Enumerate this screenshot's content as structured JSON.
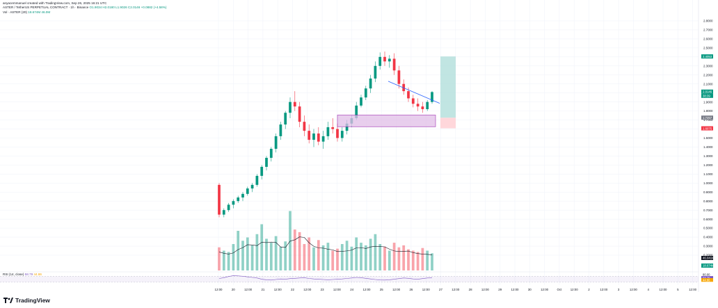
{
  "header": {
    "attribution": "anyacemmanuel created with TradingView.com, Sep 26, 2025 16:21 UTC",
    "symbol_line": "ASTER / TetherUS PERPETUAL CONTRACT · 1h · Binance",
    "ohlc": "O1.9034 H2.0180 L1.9026 C2.0146 +0.0882 (+4.58%)",
    "vol_label": "Vol · ASTER (20)",
    "vol_values": "18.674M  46.0M"
  },
  "rsi": {
    "label": "RSI (14, close)",
    "value": "58.79",
    "extra": "44.86",
    "levels": {
      "upper": 70,
      "lower": 30
    },
    "axis_labels": [
      "80.00",
      "58.79",
      "44.86"
    ]
  },
  "price_axis": {
    "ticks": [
      "2.8000",
      "2.7000",
      "2.6000",
      "2.5000",
      "2.4000",
      "2.3000",
      "2.2000",
      "2.1000",
      "2.0000",
      "1.9000",
      "1.8000",
      "1.7000",
      "1.6000",
      "1.5000",
      "1.4000",
      "1.3000",
      "1.2000",
      "1.1000",
      "1.0000",
      "0.9000",
      "0.8000",
      "0.7000",
      "0.6000",
      "0.5000",
      "0.4000",
      "0.3000",
      "0.2000"
    ],
    "tags": [
      {
        "text": "2.4053",
        "color": "#089981"
      },
      {
        "text": "2.0146",
        "color": "#089981"
      },
      {
        "text": "38:39",
        "color": "#089981"
      },
      {
        "text": "1.7257",
        "color": "#787b86"
      },
      {
        "text": "1.6075",
        "color": "#f23645"
      },
      {
        "text": "46.041M",
        "color": "#131722"
      },
      {
        "text": "18.674M",
        "color": "#089981"
      }
    ]
  },
  "time_axis": {
    "ticks": [
      "12:00",
      "20",
      "12:00",
      "21",
      "12:00",
      "22",
      "12:00",
      "23",
      "12:00",
      "24",
      "12:00",
      "25",
      "12:00",
      "26",
      "12:00",
      "27",
      "12:00",
      "28",
      "12:00",
      "29",
      "12:00",
      "30",
      "12:00",
      "Oct",
      "12:00",
      "2",
      "12:00",
      "3",
      "12:00",
      "4",
      "12:00",
      "5",
      "12:00"
    ]
  },
  "footer": {
    "logo_text": "TradingView"
  },
  "colors": {
    "up": "#089981",
    "down": "#f23645",
    "box": "#e1bee7",
    "box_border": "#9c27b0",
    "trend": "#2962ff",
    "target": "#b2dfdb",
    "stop": "#ffcdd2"
  },
  "chart_data": {
    "type": "candlestick",
    "timeframe": "1h",
    "symbol": "ASTERUSDT.P",
    "y_range": [
      0.2,
      2.8
    ],
    "ohlc_samples": [
      [
        0.98,
        1.0,
        0.62,
        0.65
      ],
      [
        0.65,
        0.72,
        0.62,
        0.7
      ],
      [
        0.7,
        0.78,
        0.68,
        0.76
      ],
      [
        0.76,
        0.82,
        0.72,
        0.8
      ],
      [
        0.8,
        0.86,
        0.78,
        0.84
      ],
      [
        0.84,
        0.9,
        0.8,
        0.88
      ],
      [
        0.88,
        0.96,
        0.86,
        0.94
      ],
      [
        0.94,
        1.0,
        0.9,
        0.98
      ],
      [
        0.98,
        1.1,
        0.96,
        1.08
      ],
      [
        1.08,
        1.2,
        1.04,
        1.18
      ],
      [
        1.18,
        1.3,
        1.14,
        1.28
      ],
      [
        1.28,
        1.4,
        1.24,
        1.38
      ],
      [
        1.38,
        1.55,
        1.34,
        1.52
      ],
      [
        1.52,
        1.68,
        1.48,
        1.65
      ],
      [
        1.65,
        1.8,
        1.6,
        1.78
      ],
      [
        1.78,
        1.95,
        1.72,
        1.9
      ],
      [
        1.9,
        2.02,
        1.8,
        1.85
      ],
      [
        1.85,
        1.9,
        1.62,
        1.68
      ],
      [
        1.68,
        1.75,
        1.52,
        1.58
      ],
      [
        1.58,
        1.65,
        1.44,
        1.48
      ],
      [
        1.48,
        1.6,
        1.4,
        1.55
      ],
      [
        1.55,
        1.62,
        1.42,
        1.46
      ],
      [
        1.46,
        1.58,
        1.38,
        1.52
      ],
      [
        1.52,
        1.68,
        1.48,
        1.62
      ],
      [
        1.62,
        1.72,
        1.55,
        1.6
      ],
      [
        1.6,
        1.66,
        1.46,
        1.5
      ],
      [
        1.5,
        1.62,
        1.46,
        1.58
      ],
      [
        1.58,
        1.7,
        1.54,
        1.66
      ],
      [
        1.66,
        1.75,
        1.62,
        1.72
      ],
      [
        1.72,
        1.9,
        1.7,
        1.86
      ],
      [
        1.86,
        1.98,
        1.84,
        1.95
      ],
      [
        1.95,
        2.08,
        1.92,
        2.05
      ],
      [
        2.05,
        2.2,
        2.0,
        2.16
      ],
      [
        2.16,
        2.35,
        2.12,
        2.3
      ],
      [
        2.3,
        2.45,
        2.26,
        2.4
      ],
      [
        2.4,
        2.46,
        2.3,
        2.35
      ],
      [
        2.35,
        2.42,
        2.28,
        2.38
      ],
      [
        2.38,
        2.44,
        2.2,
        2.25
      ],
      [
        2.25,
        2.3,
        2.05,
        2.1
      ],
      [
        2.1,
        2.15,
        1.98,
        2.02
      ],
      [
        2.02,
        2.06,
        1.9,
        1.94
      ],
      [
        1.94,
        1.98,
        1.84,
        1.88
      ],
      [
        1.88,
        1.94,
        1.8,
        1.85
      ],
      [
        1.85,
        1.9,
        1.78,
        1.82
      ],
      [
        1.82,
        1.92,
        1.8,
        1.9
      ],
      [
        1.9,
        2.02,
        1.88,
        2.01
      ]
    ],
    "volume_samples": [
      0.35,
      0.3,
      0.28,
      0.4,
      0.6,
      0.45,
      0.5,
      0.38,
      0.55,
      0.7,
      0.48,
      0.42,
      0.52,
      0.36,
      0.44,
      0.9,
      0.62,
      0.58,
      0.4,
      0.5,
      0.35,
      0.46,
      0.38,
      0.42,
      0.3,
      0.33,
      0.4,
      0.45,
      0.36,
      0.5,
      0.42,
      0.38,
      0.48,
      0.55,
      0.4,
      0.36,
      0.3,
      0.42,
      0.35,
      0.38,
      0.32,
      0.3,
      0.28,
      0.34,
      0.3,
      0.26
    ],
    "rsi_samples": [
      55,
      60,
      68,
      74,
      72,
      70,
      66,
      62,
      58,
      50,
      46,
      44,
      48,
      52,
      50,
      54,
      56,
      58,
      60,
      55,
      52,
      50,
      48,
      46,
      48,
      50,
      52,
      55,
      58,
      62,
      60,
      56,
      52,
      48,
      45,
      44,
      46,
      50,
      54,
      58,
      56,
      52,
      50,
      54,
      58,
      59
    ],
    "annotations": {
      "support_box": [
        1.625,
        1.755
      ],
      "long_position": {
        "entry": 1.725,
        "target": 2.4053,
        "stop": 1.6075
      },
      "trendline": {
        "from": 2.13,
        "to": 1.885
      }
    }
  }
}
